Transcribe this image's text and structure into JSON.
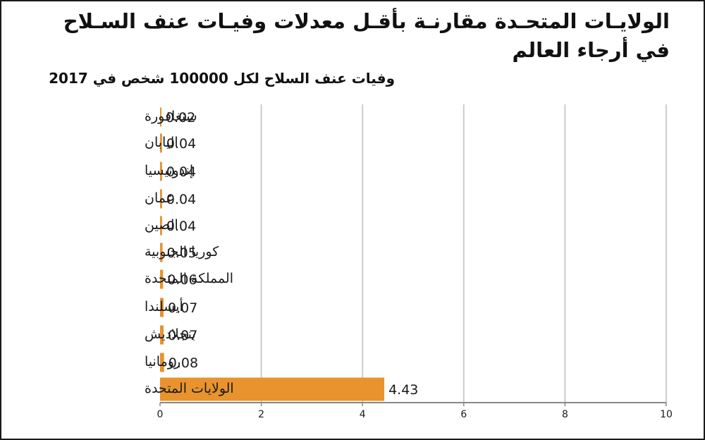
{
  "title": "الولايـات المتحـدة مقارنـة بأقـل معدلات وفيـات عنف السـلاح في أرجاء العالم",
  "subtitle": "وفيات عنف السلاح لكل 100000 شخص في 2017",
  "colors": {
    "bar": "#e8932e",
    "grid": "#cccccc",
    "axis": "#888888",
    "text": "#1a1a1a"
  },
  "chart_data": {
    "type": "bar",
    "orientation": "horizontal",
    "title": "الولايـات المتحـدة مقارنـة بأقـل معدلات وفيـات عنف السـلاح في أرجاء العالم",
    "subtitle": "وفيات عنف السلاح لكل 100000 شخص في 2017",
    "categories": [
      "سنغافورة",
      "اليابان",
      "إندونيسيا",
      "عمان",
      "الصين",
      "كوريا الجنوبية",
      "المملكة المتحدة",
      "أيسلندا",
      "بنجلاديش",
      "رومانيا",
      "الولايات المتحدة"
    ],
    "values": [
      0.02,
      0.04,
      0.04,
      0.04,
      0.04,
      0.05,
      0.06,
      0.07,
      0.07,
      0.08,
      4.43
    ],
    "value_labels": [
      "0.02",
      "0.04",
      "0.04",
      "0.04",
      "0.04",
      "0.05",
      "0.06",
      "0.07",
      "0.07",
      "0.08",
      "4.43"
    ],
    "xlim": [
      0,
      10
    ],
    "xticks": [
      0,
      2,
      4,
      6,
      8,
      10
    ],
    "xlabel": "",
    "ylabel": "",
    "grid": true,
    "legend": "none"
  }
}
